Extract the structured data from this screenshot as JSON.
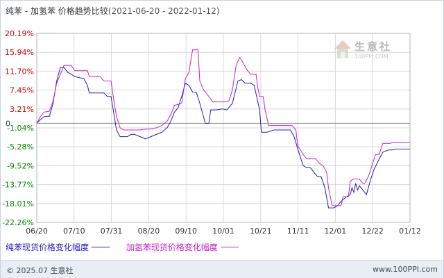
{
  "title": {
    "main": "纯苯 - 加氢苯 价格趋势比较",
    "range": "(2021-06-20 - 2022-01-12)"
  },
  "watermark": {
    "name": "生意社",
    "url": "100PPI.COM"
  },
  "footer": {
    "copyright": "© 2025.07 生意社",
    "site": "www.100PPI.com"
  },
  "colors": {
    "series1": "#1f1fbf",
    "series2": "#cc1fcc",
    "positive_tick": "#cc0000",
    "negative_tick": "#008800",
    "grid": "#d9d9d9",
    "zero_line": "#888888"
  },
  "chart_data": {
    "type": "line",
    "title": "纯苯 - 加氢苯 价格趋势比较",
    "x_ticks": [
      "06/20",
      "07/10",
      "07/31",
      "08/20",
      "09/10",
      "10/01",
      "10/21",
      "11/11",
      "12/01",
      "12/22",
      "01/12"
    ],
    "y_ticks": [
      "20.19%",
      "15.94%",
      "11.70%",
      "7.45%",
      "3.21%",
      "-1.04%",
      "-5.28%",
      "-9.52%",
      "-13.77%",
      "-18.01%",
      "-22.26%"
    ],
    "y_tick_values": [
      20.19,
      15.94,
      11.7,
      7.45,
      3.21,
      -1.04,
      -5.28,
      -9.52,
      -13.77,
      -18.01,
      -22.26
    ],
    "zero_label": "0",
    "ylim": [
      -22.26,
      20.19
    ],
    "xlim": [
      "2021-06-20",
      "2022-01-12"
    ],
    "grid": true,
    "legend_position": "bottom",
    "series": [
      {
        "name": "纯苯现货价格变化幅度",
        "color": "#1f1fbf",
        "points": [
          [
            "2021-06-20",
            0
          ],
          [
            "2021-06-22",
            0.8
          ],
          [
            "2021-06-24",
            1.5
          ],
          [
            "2021-06-27",
            1.6
          ],
          [
            "2021-06-29",
            4.5
          ],
          [
            "2021-07-01",
            9.5
          ],
          [
            "2021-07-03",
            12.5
          ],
          [
            "2021-07-05",
            12.5
          ],
          [
            "2021-07-07",
            11.5
          ],
          [
            "2021-07-09",
            11.0
          ],
          [
            "2021-07-11",
            10.5
          ],
          [
            "2021-07-16",
            10.0
          ],
          [
            "2021-07-18",
            8.5
          ],
          [
            "2021-07-19",
            6.8
          ],
          [
            "2021-07-27",
            6.8
          ],
          [
            "2021-07-29",
            6.0
          ],
          [
            "2021-07-31",
            6.0
          ],
          [
            "2021-08-01",
            3.5
          ],
          [
            "2021-08-03",
            -1.5
          ],
          [
            "2021-08-05",
            -3.0
          ],
          [
            "2021-08-09",
            -3.0
          ],
          [
            "2021-08-11",
            -2.5
          ],
          [
            "2021-08-13",
            -2.5
          ],
          [
            "2021-08-16",
            -3.0
          ],
          [
            "2021-08-19",
            -3.5
          ],
          [
            "2021-08-22",
            -3.0
          ],
          [
            "2021-08-25",
            -2.5
          ],
          [
            "2021-08-28",
            -2.0
          ],
          [
            "2021-08-31",
            -1.0
          ],
          [
            "2021-09-02",
            0.5
          ],
          [
            "2021-09-04",
            2.5
          ],
          [
            "2021-09-06",
            3.5
          ],
          [
            "2021-09-08",
            6.0
          ],
          [
            "2021-09-10",
            9.0
          ],
          [
            "2021-09-12",
            8.5
          ],
          [
            "2021-09-14",
            7.0
          ],
          [
            "2021-09-16",
            7.0
          ],
          [
            "2021-09-18",
            4.5
          ],
          [
            "2021-09-21",
            0.0
          ],
          [
            "2021-09-23",
            0.0
          ],
          [
            "2021-09-24",
            3.0
          ],
          [
            "2021-09-27",
            3.0
          ],
          [
            "2021-09-30",
            3.2
          ],
          [
            "2021-10-01",
            3.2
          ],
          [
            "2021-10-03",
            3.0
          ],
          [
            "2021-10-06",
            4.5
          ],
          [
            "2021-10-09",
            9.5
          ],
          [
            "2021-10-11",
            9.8
          ],
          [
            "2021-10-13",
            9.0
          ],
          [
            "2021-10-16",
            9.0
          ],
          [
            "2021-10-18",
            8.5
          ],
          [
            "2021-10-21",
            3.0
          ],
          [
            "2021-10-22",
            -2.0
          ],
          [
            "2021-10-25",
            -2.0
          ],
          [
            "2021-10-29",
            -1.5
          ],
          [
            "2021-11-07",
            -1.5
          ],
          [
            "2021-11-09",
            -3.0
          ],
          [
            "2021-11-12",
            -7.0
          ],
          [
            "2021-11-14",
            -9.5
          ],
          [
            "2021-11-16",
            -10.0
          ],
          [
            "2021-11-18",
            -10.0
          ],
          [
            "2021-11-20",
            -11.0
          ],
          [
            "2021-11-22",
            -12.0
          ],
          [
            "2021-11-24",
            -12.0
          ],
          [
            "2021-11-26",
            -14.5
          ],
          [
            "2021-11-28",
            -19.0
          ],
          [
            "2021-12-01",
            -19.0
          ],
          [
            "2021-12-03",
            -18.5
          ],
          [
            "2021-12-05",
            -17.5
          ],
          [
            "2021-12-08",
            -16.5
          ],
          [
            "2021-12-10",
            -16.0
          ],
          [
            "2021-12-11",
            -14.5
          ],
          [
            "2021-12-12",
            -15.5
          ],
          [
            "2021-12-13",
            -13.5
          ],
          [
            "2021-12-14",
            -15.0
          ],
          [
            "2021-12-15",
            -14.0
          ],
          [
            "2021-12-17",
            -15.0
          ],
          [
            "2021-12-19",
            -16.0
          ],
          [
            "2021-12-21",
            -13.0
          ],
          [
            "2021-12-23",
            -10.5
          ],
          [
            "2021-12-26",
            -8.0
          ],
          [
            "2021-12-28",
            -6.5
          ],
          [
            "2021-12-31",
            -6.0
          ],
          [
            "2022-01-02",
            -6.0
          ],
          [
            "2022-01-04",
            -5.8
          ],
          [
            "2022-01-08",
            -5.8
          ],
          [
            "2022-01-12",
            -5.8
          ]
        ]
      },
      {
        "name": "加氢苯现货价格变化幅度",
        "color": "#cc1fcc",
        "points": [
          [
            "2021-06-20",
            0
          ],
          [
            "2021-06-22",
            1.5
          ],
          [
            "2021-06-24",
            2.5
          ],
          [
            "2021-06-27",
            2.7
          ],
          [
            "2021-06-29",
            5.0
          ],
          [
            "2021-07-01",
            9.0
          ],
          [
            "2021-07-03",
            11.0
          ],
          [
            "2021-07-05",
            13.0
          ],
          [
            "2021-07-09",
            13.0
          ],
          [
            "2021-07-11",
            11.8
          ],
          [
            "2021-07-18",
            11.8
          ],
          [
            "2021-07-19",
            10.5
          ],
          [
            "2021-07-25",
            10.5
          ],
          [
            "2021-07-27",
            9.5
          ],
          [
            "2021-07-31",
            9.5
          ],
          [
            "2021-08-01",
            6.5
          ],
          [
            "2021-08-03",
            1.5
          ],
          [
            "2021-08-05",
            -1.0
          ],
          [
            "2021-08-07",
            -1.5
          ],
          [
            "2021-08-16",
            -1.5
          ],
          [
            "2021-08-19",
            -1.3
          ],
          [
            "2021-08-22",
            -1.3
          ],
          [
            "2021-08-25",
            -1.0
          ],
          [
            "2021-08-28",
            -0.5
          ],
          [
            "2021-08-31",
            0.5
          ],
          [
            "2021-09-02",
            2.0
          ],
          [
            "2021-09-04",
            4.0
          ],
          [
            "2021-09-08",
            4.5
          ],
          [
            "2021-09-10",
            10.0
          ],
          [
            "2021-09-12",
            11.5
          ],
          [
            "2021-09-14",
            16.5
          ],
          [
            "2021-09-17",
            16.5
          ],
          [
            "2021-09-18",
            9.5
          ],
          [
            "2021-09-20",
            7.5
          ],
          [
            "2021-09-22",
            6.5
          ],
          [
            "2021-09-24",
            5.5
          ],
          [
            "2021-09-25",
            4.8
          ],
          [
            "2021-10-02",
            4.8
          ],
          [
            "2021-10-04",
            5.0
          ],
          [
            "2021-10-06",
            7.5
          ],
          [
            "2021-10-08",
            13.0
          ],
          [
            "2021-10-10",
            14.8
          ],
          [
            "2021-10-12",
            13.5
          ],
          [
            "2021-10-14",
            12.0
          ],
          [
            "2021-10-16",
            11.0
          ],
          [
            "2021-10-19",
            11.0
          ],
          [
            "2021-10-20",
            8.0
          ],
          [
            "2021-10-21",
            6.0
          ],
          [
            "2021-10-23",
            6.0
          ],
          [
            "2021-10-24",
            3.0
          ],
          [
            "2021-10-26",
            -0.5
          ],
          [
            "2021-11-08",
            -0.5
          ],
          [
            "2021-11-10",
            -1.5
          ],
          [
            "2021-11-11",
            -5.0
          ],
          [
            "2021-11-14",
            -7.0
          ],
          [
            "2021-11-16",
            -8.0
          ],
          [
            "2021-11-21",
            -8.0
          ],
          [
            "2021-11-23",
            -9.0
          ],
          [
            "2021-11-25",
            -9.5
          ],
          [
            "2021-11-27",
            -11.0
          ],
          [
            "2021-11-28",
            -14.5
          ],
          [
            "2021-11-30",
            -18.5
          ],
          [
            "2021-12-05",
            -18.5
          ],
          [
            "2021-12-06",
            -16.5
          ],
          [
            "2021-12-09",
            -16.5
          ],
          [
            "2021-12-10",
            -13.0
          ],
          [
            "2021-12-12",
            -12.5
          ],
          [
            "2021-12-15",
            -12.5
          ],
          [
            "2021-12-17",
            -13.5
          ],
          [
            "2021-12-18",
            -13.5
          ],
          [
            "2021-12-20",
            -12.0
          ],
          [
            "2021-12-22",
            -9.5
          ],
          [
            "2021-12-24",
            -7.0
          ],
          [
            "2021-12-26",
            -7.0
          ],
          [
            "2021-12-28",
            -4.5
          ],
          [
            "2022-01-01",
            -4.5
          ],
          [
            "2022-01-03",
            -4.3
          ],
          [
            "2022-01-06",
            -4.3
          ],
          [
            "2022-01-12",
            -4.3
          ]
        ]
      }
    ]
  },
  "legend": [
    {
      "label": "纯苯现货价格变化幅度",
      "color": "#1f1fbf"
    },
    {
      "label": "加氢苯现货价格变化幅度",
      "color": "#cc1fcc"
    }
  ]
}
